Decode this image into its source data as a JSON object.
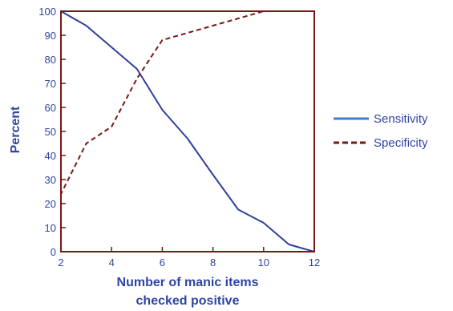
{
  "chart_data": {
    "type": "line",
    "xlabel_lines": [
      "Number of manic items",
      "checked positive"
    ],
    "ylabel": "Percent",
    "xlim": [
      2,
      12
    ],
    "ylim": [
      0,
      100
    ],
    "x_ticks": [
      2,
      4,
      6,
      8,
      10,
      12
    ],
    "y_ticks": [
      0,
      10,
      20,
      30,
      40,
      50,
      60,
      70,
      80,
      90,
      100
    ],
    "legend_position": "right",
    "colors": {
      "text": "#2e45a3",
      "frame": "#7a1616",
      "sensitivity": "#2f3f9c",
      "specificity": "#7a1616",
      "legend_sensitivity": "#3f7fc4"
    },
    "series": [
      {
        "name": "Sensitivity",
        "style": "solid",
        "x": [
          2,
          3,
          4,
          5,
          6,
          7,
          8,
          9,
          10,
          11,
          12
        ],
        "y": [
          100,
          94,
          85,
          76,
          59,
          47,
          32,
          17.5,
          12,
          3,
          0
        ]
      },
      {
        "name": "Specificity",
        "style": "dashed",
        "x": [
          2,
          2,
          3,
          4,
          5,
          6,
          7,
          8,
          9,
          10,
          11,
          12
        ],
        "y": [
          0,
          24,
          45,
          52,
          72,
          88,
          91,
          94,
          97,
          100,
          100,
          100
        ]
      }
    ]
  }
}
